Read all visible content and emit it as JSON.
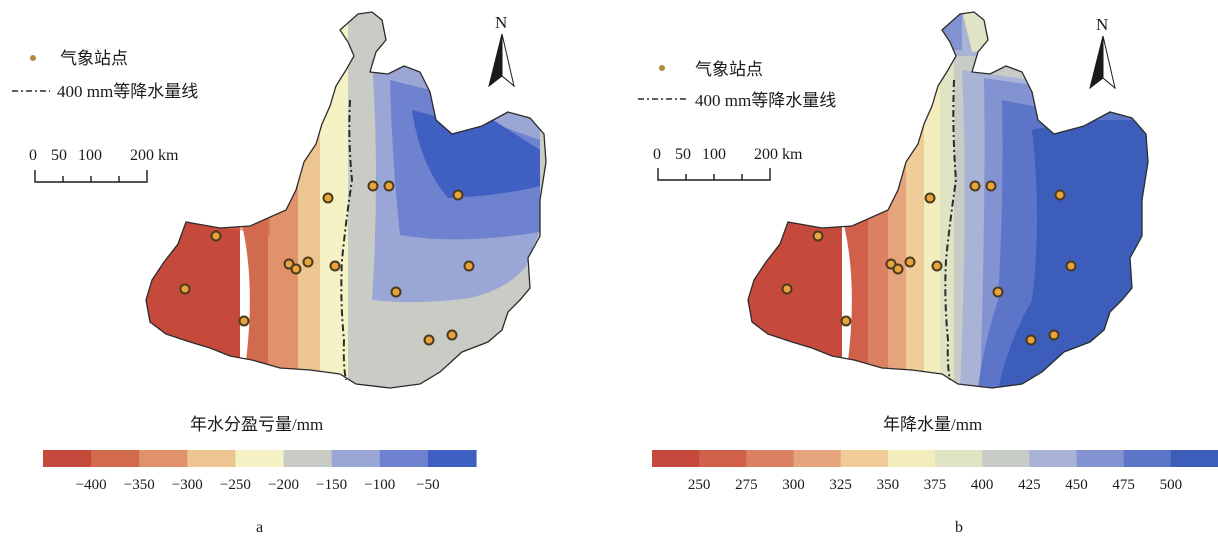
{
  "legend": {
    "station_label": "气象站点",
    "isohyet_label": "400 mm等降水量线"
  },
  "scale_bar": {
    "ticks": [
      "0",
      "50",
      "100",
      "200 km"
    ]
  },
  "north_label": "N",
  "colors": {
    "station_fill": "#e8a43a",
    "station_stroke": "#4a3a20",
    "boundary": "#2b2b2b",
    "isohyet": "#2b2b2b"
  },
  "panels": [
    {
      "label": "a",
      "colorbar": {
        "title": "年水分盈亏量/mm",
        "ticks": [
          "−400",
          "−350",
          "−300",
          "−250",
          "−200",
          "−150",
          "−100",
          "−50"
        ],
        "colors": [
          "#c54a3c",
          "#d26a4e",
          "#e0936a",
          "#edc591",
          "#f5f3c6",
          "#c9ccc4",
          "#9aa6d6",
          "#6e82cf",
          "#3f5fc2"
        ]
      }
    },
    {
      "label": "b",
      "colorbar": {
        "title": "年降水量/mm",
        "ticks": [
          "250",
          "275",
          "300",
          "325",
          "350",
          "375",
          "400",
          "425",
          "450",
          "475",
          "500"
        ],
        "colors": [
          "#c54a3c",
          "#d0604a",
          "#dc8062",
          "#e6a47c",
          "#efcc98",
          "#f3ecbd",
          "#e0e3c4",
          "#c8ccc6",
          "#a9b3d6",
          "#8393d1",
          "#5c75c8",
          "#3c5dba"
        ]
      }
    }
  ]
}
